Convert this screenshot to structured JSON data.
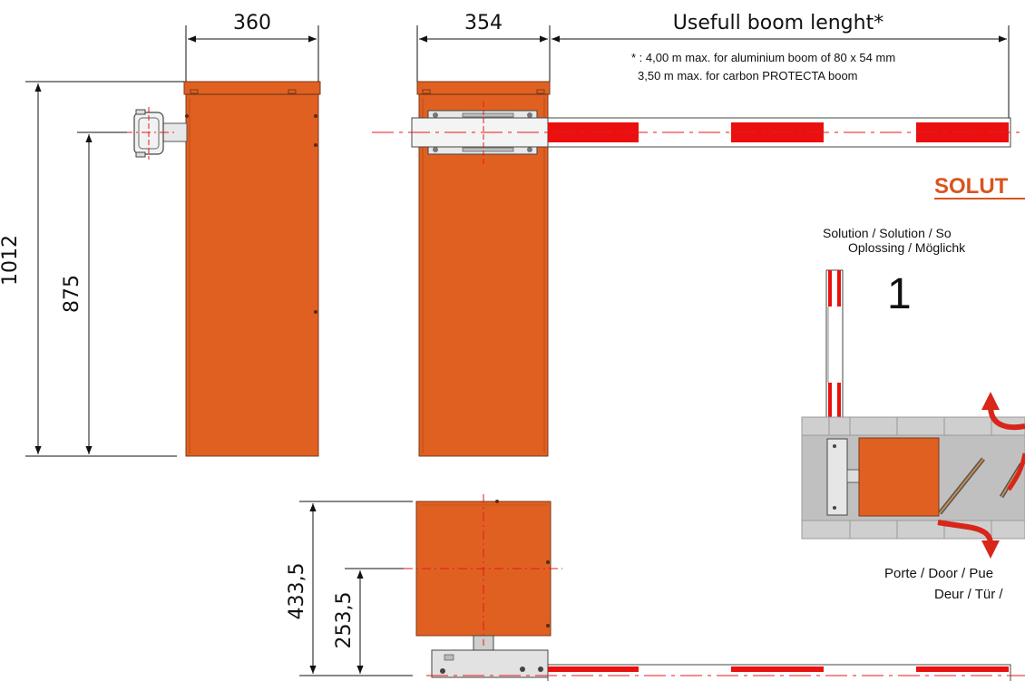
{
  "colors": {
    "housing": "#e06022",
    "housing_edge": "#7a3a18",
    "boom_red": "#ea1010",
    "centerline": "#e51a1a",
    "solution_title": "#d9541e",
    "ground_fill": "#c9c9c9",
    "arrow_red": "#d8261a"
  },
  "dimensions": {
    "width_side": "360",
    "width_front": "354",
    "boom_length": "Usefull boom lenght*",
    "height_total": "1012",
    "height_axis": "875",
    "top_depth": "433,5",
    "top_axis": "253,5"
  },
  "footnote": {
    "line1": "* : 4,00 m max. for aluminium boom of 80 x 54 mm",
    "line2": "3,50 m max. for carbon PROTECTA boom"
  },
  "solution": {
    "title": "SOLUT",
    "subtitle_line1": "Solution / Solution / So",
    "subtitle_line2": "Oplossing / Möglichk",
    "number": "1",
    "door_line1": "Porte / Door / Pue",
    "door_line2": "Deur / Tür /"
  }
}
